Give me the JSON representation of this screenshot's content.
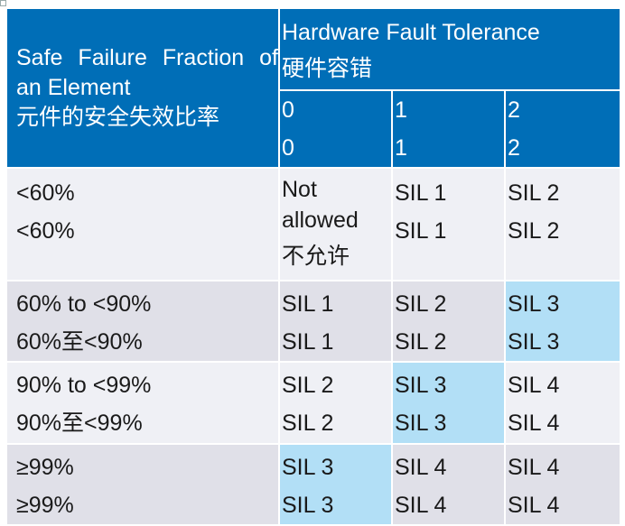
{
  "header": {
    "sff_en": "Safe Failure Fraction of an Element",
    "sff_zh": "元件的安全失效比率",
    "hft_en": "Hardware Fault Tolerance",
    "hft_zh": "硬件容错",
    "hft_values": [
      {
        "en": "0",
        "zh": "0"
      },
      {
        "en": "1",
        "zh": "1"
      },
      {
        "en": "2",
        "zh": "2"
      }
    ]
  },
  "colors": {
    "header": "#006EB7",
    "row_light": "#EFF0F5",
    "row_dark": "#E0E0E8",
    "highlight": "#B2DFF6"
  },
  "rows": [
    {
      "sff_en": "<60%",
      "sff_zh": "<60%",
      "cells": [
        {
          "lines": [
            "Not",
            "allowed",
            "不允许"
          ]
        },
        {
          "lines": [
            "SIL 1",
            "SIL 1"
          ]
        },
        {
          "lines": [
            "SIL 2",
            "SIL 2"
          ]
        }
      ]
    },
    {
      "sff_en": "60% to <90%",
      "sff_zh": "60%至<90%",
      "cells": [
        {
          "lines": [
            "SIL 1",
            "SIL 1"
          ]
        },
        {
          "lines": [
            "SIL 2",
            "SIL 2"
          ]
        },
        {
          "lines": [
            "SIL 3",
            "SIL 3"
          ],
          "highlight": true
        }
      ]
    },
    {
      "sff_en": "90% to <99%",
      "sff_zh": "90%至<99%",
      "cells": [
        {
          "lines": [
            "SIL 2",
            "SIL 2"
          ]
        },
        {
          "lines": [
            "SIL 3",
            "SIL 3"
          ],
          "highlight": true
        },
        {
          "lines": [
            "SIL 4",
            "SIL 4"
          ]
        }
      ]
    },
    {
      "sff_en": "≥99%",
      "sff_zh": "≥99%",
      "cells": [
        {
          "lines": [
            "SIL 3",
            "SIL 3"
          ],
          "highlight": true
        },
        {
          "lines": [
            "SIL 4",
            "SIL 4"
          ]
        },
        {
          "lines": [
            "SIL 4",
            "SIL 4"
          ]
        }
      ]
    }
  ]
}
